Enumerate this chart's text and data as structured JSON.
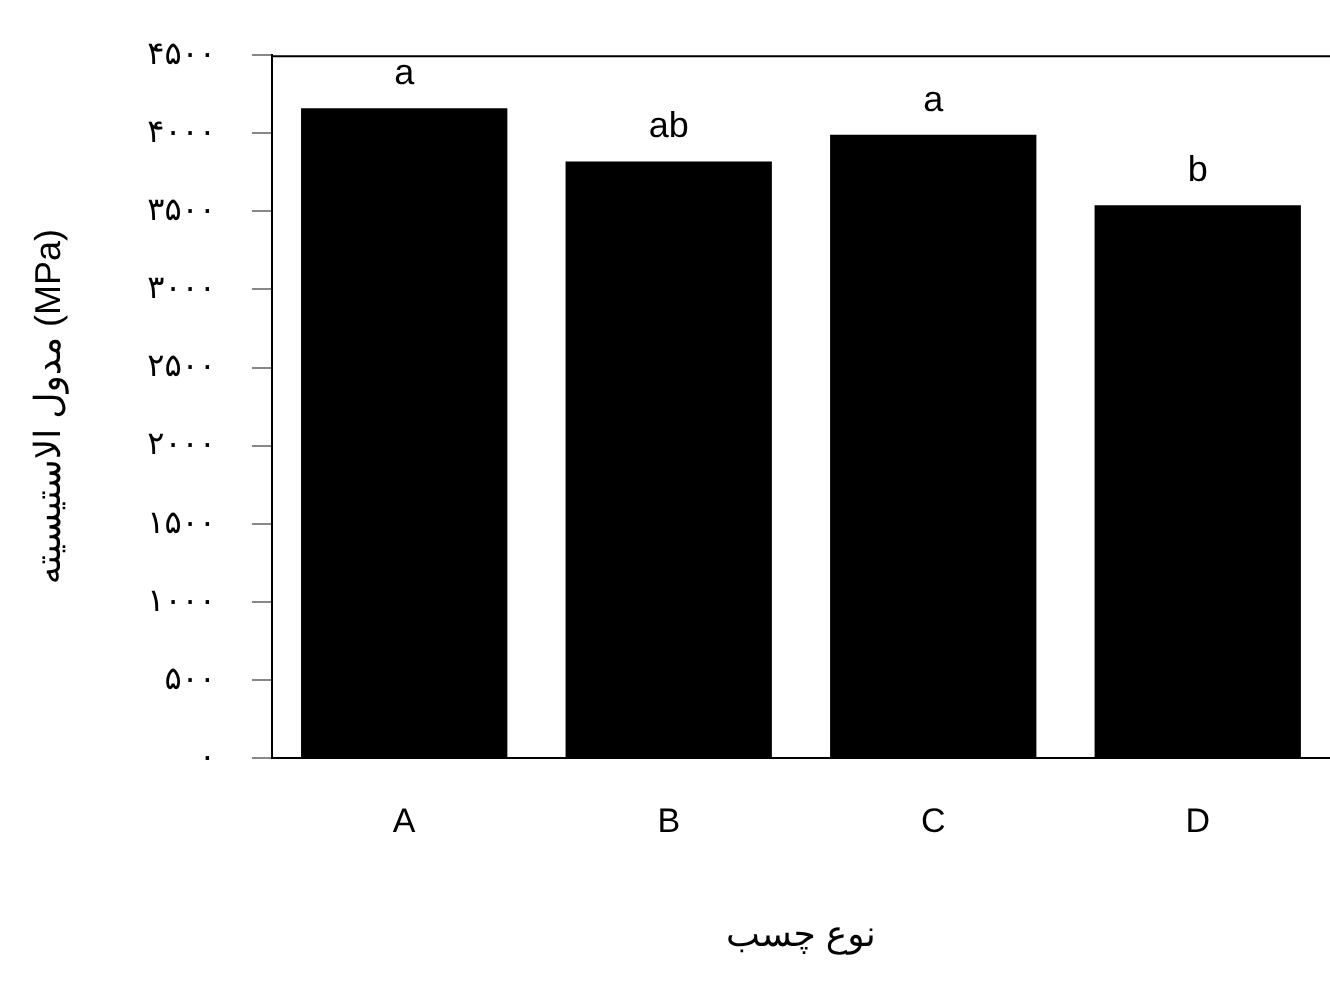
{
  "chart_data": {
    "type": "bar",
    "xlabel": "نوع چسب",
    "ylabel": "مدول الاستیسیته (MPa)",
    "categories": [
      "A",
      "B",
      "C",
      "D"
    ],
    "values": [
      4160,
      3820,
      3990,
      3540
    ],
    "color": "#000000",
    "ylim": [
      0,
      4500
    ],
    "yticks": [
      {
        "value": 0,
        "label": "۰"
      },
      {
        "value": 500,
        "label": "۵۰۰"
      },
      {
        "value": 1000,
        "label": "۱۰۰۰"
      },
      {
        "value": 1500,
        "label": "۱۵۰۰"
      },
      {
        "value": 2000,
        "label": "۲۰۰۰"
      },
      {
        "value": 2500,
        "label": "۲۵۰۰"
      },
      {
        "value": 3000,
        "label": "۳۰۰۰"
      },
      {
        "value": 3500,
        "label": "۳۵۰۰"
      },
      {
        "value": 4000,
        "label": "۴۰۰۰"
      },
      {
        "value": 4500,
        "label": "۴۵۰۰"
      }
    ],
    "annotations": [
      {
        "text": "a",
        "x": "A",
        "y": 4160
      },
      {
        "text": "ab",
        "x": "B",
        "y": 3820
      },
      {
        "text": "a",
        "x": "C",
        "y": 3990
      },
      {
        "text": "b",
        "x": "D",
        "y": 3540
      }
    ],
    "grid": false,
    "legend": false
  }
}
